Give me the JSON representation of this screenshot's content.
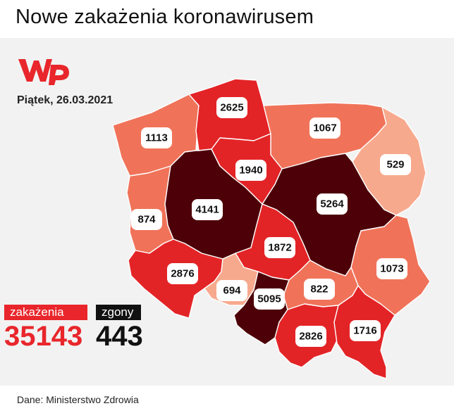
{
  "title": "Nowe zakażenia koronawirusem",
  "date": "Piątek, 26.03.2021",
  "source": "Dane: Ministerstwo Zdrowia",
  "legend": {
    "cases_label": "zakażenia",
    "cases_value": "35143",
    "deaths_label": "zgony",
    "deaths_value": "443"
  },
  "colors": {
    "darkest": "#4d0008",
    "red": "#e32427",
    "orange": "#f07359",
    "light": "#f7a98e",
    "accent": "#e8262b"
  },
  "regions": [
    {
      "id": "zachodniopomorskie",
      "value": "1113",
      "color": "#f07359"
    },
    {
      "id": "pomorskie",
      "value": "2625",
      "color": "#e32427"
    },
    {
      "id": "warminsko-mazurskie",
      "value": "1067",
      "color": "#f07359"
    },
    {
      "id": "podlaskie",
      "value": "529",
      "color": "#f7a98e"
    },
    {
      "id": "lubuskie",
      "value": "874",
      "color": "#f07359"
    },
    {
      "id": "wielkopolskie",
      "value": "4141",
      "color": "#4d0008"
    },
    {
      "id": "kujawsko-pomorskie",
      "value": "1940",
      "color": "#e32427"
    },
    {
      "id": "mazowieckie",
      "value": "5264",
      "color": "#4d0008"
    },
    {
      "id": "lodzkie",
      "value": "1872",
      "color": "#e32427"
    },
    {
      "id": "lubelskie",
      "value": "1073",
      "color": "#f07359"
    },
    {
      "id": "dolnoslaskie",
      "value": "2876",
      "color": "#e32427"
    },
    {
      "id": "opolskie",
      "value": "694",
      "color": "#f7a98e"
    },
    {
      "id": "slaskie",
      "value": "5095",
      "color": "#4d0008"
    },
    {
      "id": "swietokrzyskie",
      "value": "822",
      "color": "#f07359"
    },
    {
      "id": "malopolskie",
      "value": "2826",
      "color": "#e32427"
    },
    {
      "id": "podkarpackie",
      "value": "1716",
      "color": "#e32427"
    }
  ]
}
